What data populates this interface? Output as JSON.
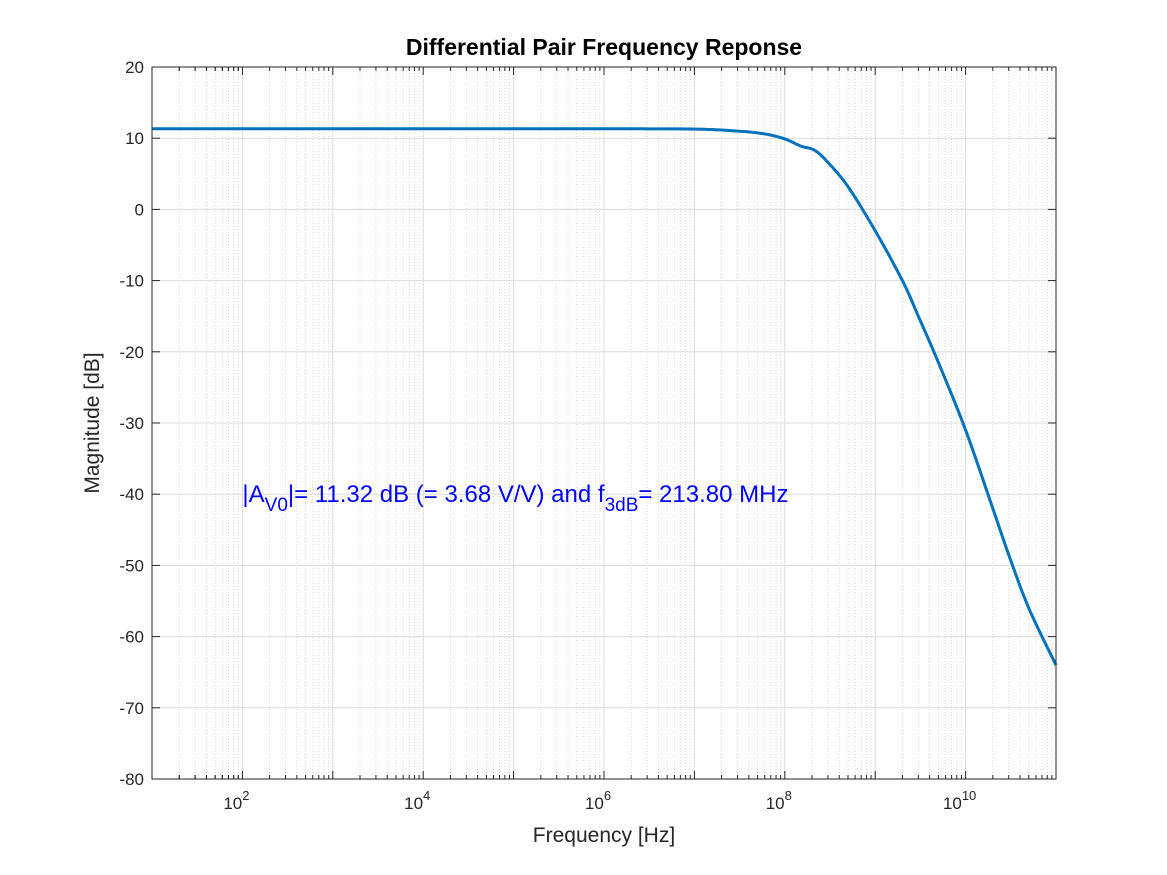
{
  "chart_data": {
    "type": "line",
    "title": "Differential Pair Frequency Reponse",
    "xlabel": "Frequency [Hz]",
    "ylabel": "Magnitude [dB]",
    "xscale": "log",
    "xlim": [
      10,
      100000000000
    ],
    "ylim": [
      -80,
      20
    ],
    "grid": true,
    "minor_grid": true,
    "x_ticks": [
      {
        "value": 100,
        "base": "10",
        "exp": "2"
      },
      {
        "value": 10000,
        "base": "10",
        "exp": "4"
      },
      {
        "value": 1000000,
        "base": "10",
        "exp": "6"
      },
      {
        "value": 100000000,
        "base": "10",
        "exp": "8"
      },
      {
        "value": 10000000000,
        "base": "10",
        "exp": "10"
      }
    ],
    "y_ticks": [
      {
        "value": 20,
        "label": "20"
      },
      {
        "value": 10,
        "label": "10"
      },
      {
        "value": 0,
        "label": "0"
      },
      {
        "value": -10,
        "label": "-10"
      },
      {
        "value": -20,
        "label": "-20"
      },
      {
        "value": -30,
        "label": "-30"
      },
      {
        "value": -40,
        "label": "-40"
      },
      {
        "value": -50,
        "label": "-50"
      },
      {
        "value": -60,
        "label": "-60"
      },
      {
        "value": -70,
        "label": "-70"
      },
      {
        "value": -80,
        "label": "-80"
      }
    ],
    "series": [
      {
        "color": "#0072BD",
        "x": [
          10,
          100,
          1000,
          10000,
          100000,
          1000000,
          10000000,
          30000000,
          60000000,
          100000000,
          150000000,
          213800000,
          300000000,
          500000000,
          1000000000,
          2000000000,
          3000000000,
          5000000000,
          10000000000,
          20000000000,
          30000000000,
          50000000000,
          100000000000
        ],
        "y": [
          11.32,
          11.32,
          11.32,
          11.32,
          11.32,
          11.32,
          11.28,
          11.0,
          10.6,
          9.9,
          8.9,
          8.3,
          6.6,
          3.2,
          -3.0,
          -10.0,
          -15.0,
          -21.5,
          -31.0,
          -42.0,
          -48.5,
          -56.0,
          -64.0
        ]
      }
    ],
    "annotation": {
      "color": "#0000FF",
      "parts": [
        {
          "text": "|A",
          "sub": false
        },
        {
          "text": "V0",
          "sub": true
        },
        {
          "text": "|= 11.32 dB (= 3.68 V/V) and f",
          "sub": false
        },
        {
          "text": "3dB",
          "sub": true
        },
        {
          "text": "= 213.80 MHz",
          "sub": false
        }
      ],
      "anchor": {
        "x": 100,
        "y": -40
      }
    }
  },
  "colors": {
    "axis": "#262626",
    "grid_major": "#dcdcdc",
    "grid_minor": "#d0d0d0"
  }
}
